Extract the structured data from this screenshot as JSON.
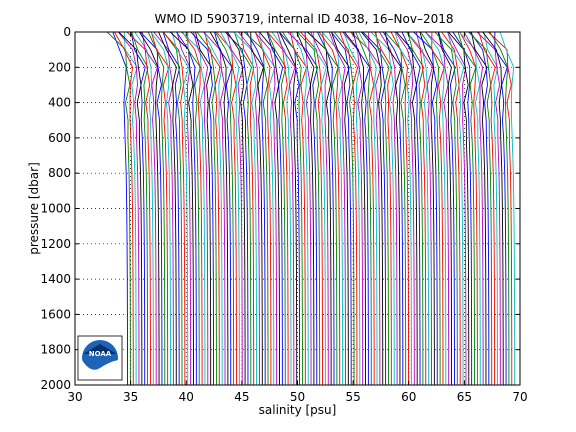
{
  "chart_data": {
    "type": "line",
    "title": "WMO ID 5903719, internal ID 4038, 16–Nov–2018",
    "xlabel": "salinity [psu]",
    "ylabel": "pressure [dbar]",
    "xlim": [
      30,
      70
    ],
    "ylim": [
      2000,
      0
    ],
    "y_reversed": true,
    "xticks": [
      30,
      35,
      40,
      45,
      50,
      55,
      60,
      65,
      70
    ],
    "yticks": [
      0,
      200,
      400,
      600,
      800,
      1000,
      1200,
      1400,
      1600,
      1800,
      2000
    ],
    "grid": "dotted",
    "profile_style": "offset salinity profiles (each successive profile shifted right by ~0.25 psu)",
    "series_colors": [
      "#0000ff",
      "#008000",
      "#ff0000",
      "#00bfbf",
      "#bf00bf",
      "#000000"
    ],
    "series": [
      {
        "pressure": [
          0,
          100,
          200,
          300,
          400,
          500,
          600,
          800,
          1000,
          1200,
          1400,
          1600,
          1800,
          2000
        ],
        "salinity": [
          33.8,
          34.0,
          34.6,
          34.5,
          34.4,
          34.45,
          34.5,
          34.6,
          34.65,
          34.68,
          34.7,
          34.71,
          34.72,
          34.72
        ]
      },
      {
        "pressure": [
          0,
          100,
          200,
          300,
          400,
          500,
          600,
          800,
          1000,
          1200,
          1400,
          1600,
          1800,
          2000
        ],
        "salinity": [
          33.9,
          34.1,
          34.7,
          34.55,
          34.45,
          34.5,
          34.55,
          34.62,
          34.66,
          34.69,
          34.71,
          34.72,
          34.72,
          34.73
        ]
      }
    ],
    "profile_count": 136,
    "logo": {
      "name": "noaa-logo",
      "text": "NOAA"
    }
  }
}
